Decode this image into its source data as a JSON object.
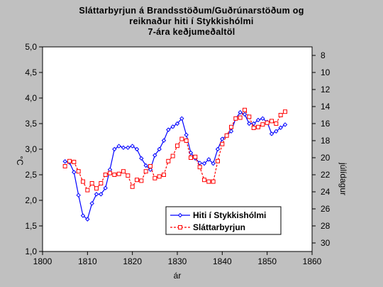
{
  "chart_data": {
    "type": "line",
    "title_lines": [
      "Sláttarbyrjun á Brandsstöðum/Guðrúnarstöðum og",
      "reiknaður hiti í Stykkishólmi",
      "7-ára keðjumeðaltöl"
    ],
    "xlabel": "ár",
    "ylabel_left": "°C",
    "ylabel_right": "júlídagur",
    "xlim": [
      1800,
      1860
    ],
    "x_ticks": [
      1800,
      1810,
      1820,
      1830,
      1840,
      1850,
      1860
    ],
    "ylim_left": [
      1.0,
      5.0
    ],
    "y_ticks_left": [
      "1,0",
      "1,5",
      "2,0",
      "2,5",
      "3,0",
      "3,5",
      "4,0",
      "4,5",
      "5,0"
    ],
    "ylim_right": [
      31,
      7
    ],
    "y_ticks_right": [
      8,
      10,
      12,
      14,
      16,
      18,
      20,
      22,
      24,
      26,
      28,
      30
    ],
    "grid": false,
    "legend_position": "bottom-right",
    "series": [
      {
        "name": "Hiti í Stykkishólmi",
        "axis": "left",
        "color": "#0000ff",
        "marker": "diamond",
        "x": [
          1805,
          1806,
          1807,
          1808,
          1809,
          1810,
          1811,
          1812,
          1813,
          1814,
          1815,
          1816,
          1817,
          1818,
          1819,
          1820,
          1821,
          1822,
          1823,
          1824,
          1825,
          1826,
          1827,
          1828,
          1829,
          1830,
          1831,
          1832,
          1833,
          1834,
          1835,
          1836,
          1837,
          1838,
          1839,
          1840,
          1841,
          1842,
          1843,
          1844,
          1845,
          1846,
          1847,
          1848,
          1849,
          1850,
          1851,
          1852,
          1853,
          1854
        ],
        "values": [
          2.76,
          2.74,
          2.55,
          2.1,
          1.7,
          1.63,
          1.94,
          2.12,
          2.12,
          2.24,
          2.6,
          3.0,
          3.06,
          3.03,
          3.03,
          3.06,
          3.0,
          2.82,
          2.68,
          2.6,
          2.88,
          3.0,
          3.17,
          3.38,
          3.44,
          3.5,
          3.6,
          3.28,
          2.93,
          2.82,
          2.73,
          2.72,
          2.8,
          2.72,
          3.0,
          3.2,
          3.27,
          3.35,
          3.6,
          3.72,
          3.68,
          3.5,
          3.5,
          3.57,
          3.6,
          3.53,
          3.3,
          3.35,
          3.42,
          3.48
        ]
      },
      {
        "name": "Sláttarbyrjun",
        "axis": "right",
        "color": "#ff0000",
        "marker": "square",
        "x": [
          1805,
          1806,
          1807,
          1808,
          1809,
          1810,
          1811,
          1812,
          1813,
          1814,
          1815,
          1816,
          1817,
          1818,
          1819,
          1820,
          1821,
          1822,
          1823,
          1824,
          1825,
          1826,
          1827,
          1828,
          1829,
          1830,
          1831,
          1832,
          1833,
          1834,
          1835,
          1836,
          1837,
          1838,
          1839,
          1840,
          1841,
          1842,
          1843,
          1844,
          1845,
          1846,
          1847,
          1848,
          1849,
          1850,
          1851,
          1852,
          1853,
          1854
        ],
        "values": [
          21.0,
          20.4,
          20.5,
          21.6,
          22.8,
          23.8,
          23.0,
          23.6,
          23.0,
          22.0,
          21.8,
          22.0,
          21.9,
          21.6,
          22.1,
          23.4,
          22.6,
          22.7,
          21.6,
          21.0,
          22.4,
          22.2,
          22.0,
          20.4,
          19.8,
          18.6,
          17.8,
          18.0,
          20.0,
          19.9,
          21.1,
          22.6,
          22.8,
          22.8,
          20.4,
          18.4,
          17.4,
          16.4,
          15.4,
          15.3,
          14.4,
          15.2,
          16.5,
          16.4,
          16.1,
          15.9,
          15.7,
          16.0,
          15.0,
          14.6
        ]
      }
    ]
  }
}
